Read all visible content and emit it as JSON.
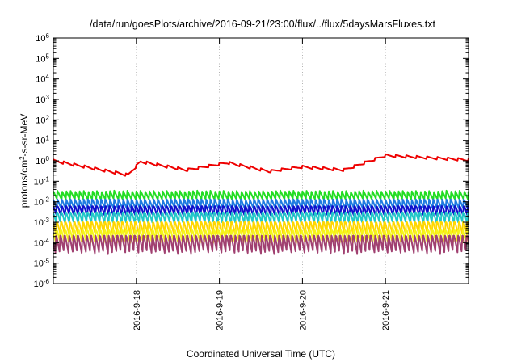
{
  "chart_data": {
    "type": "line",
    "title": "/data/run/goesPlots/archive/2016-09-21/23:00/flux/../flux/5daysMarsFluxes.txt",
    "xlabel": "Coordinated Universal Time (UTC)",
    "ylabel": "protons/cm2-s-sr-MeV",
    "ylabel_parts": {
      "pre": "protons/cm",
      "sup": "2",
      "post": "-s-sr-MeV"
    },
    "y_scale": "log",
    "ylim_exp": [
      -6,
      6
    ],
    "y_tick_base": "10",
    "y_tick_exponents": [
      "-6",
      "-5",
      "-4",
      "-3",
      "-2",
      "-1",
      "0",
      "1",
      "2",
      "3",
      "4",
      "5",
      "6"
    ],
    "xlim_days": [
      0,
      5
    ],
    "x_tick_labels": [
      "2016-9-18",
      "2016-9-19",
      "2016-9-20",
      "2016-9-21"
    ],
    "x_tick_days": [
      1,
      2,
      3,
      4
    ],
    "grid": true,
    "series": [
      {
        "color": "#ee0000",
        "base": 0.9,
        "range": [
          0.17,
          2.4
        ],
        "cycles": 8,
        "amp": 0.55,
        "trend": [
          [
            0,
            1.0
          ],
          [
            0.9,
            0.2
          ],
          [
            1.05,
            0.9
          ],
          [
            1.6,
            0.35
          ],
          [
            2.1,
            0.8
          ],
          [
            2.6,
            0.3
          ],
          [
            3.0,
            0.5
          ],
          [
            3.5,
            0.35
          ],
          [
            4.0,
            1.8
          ],
          [
            5.0,
            1.1
          ]
        ]
      },
      {
        "color": "#22dd22",
        "base": 0.022,
        "range": [
          0.011,
          0.035
        ],
        "cycles": 19,
        "amp": 0.45
      },
      {
        "color": "#1e7be0",
        "base": 0.0085,
        "range": [
          0.003,
          0.013
        ],
        "cycles": 19,
        "amp": 0.55
      },
      {
        "color": "#1010cc",
        "base": 0.0045,
        "range": [
          0.0012,
          0.006
        ],
        "cycles": 19,
        "amp": 0.65
      },
      {
        "color": "#22c8c8",
        "base": 0.0022,
        "range": [
          0.0005,
          0.003
        ],
        "cycles": 19,
        "amp": 0.75
      },
      {
        "color": "#ffd700",
        "base": 0.0007,
        "range": [
          0.0001,
          0.001
        ],
        "cycles": 19,
        "amp": 0.85
      },
      {
        "color": "#f5f51a",
        "base": 0.0003,
        "range": [
          5e-05,
          0.0004
        ],
        "cycles": 19,
        "amp": 0.9
      },
      {
        "color": "#a04070",
        "base": 0.00012,
        "range": [
          1.2e-05,
          0.00022
        ],
        "cycles": 19,
        "amp": 1.1
      }
    ]
  }
}
